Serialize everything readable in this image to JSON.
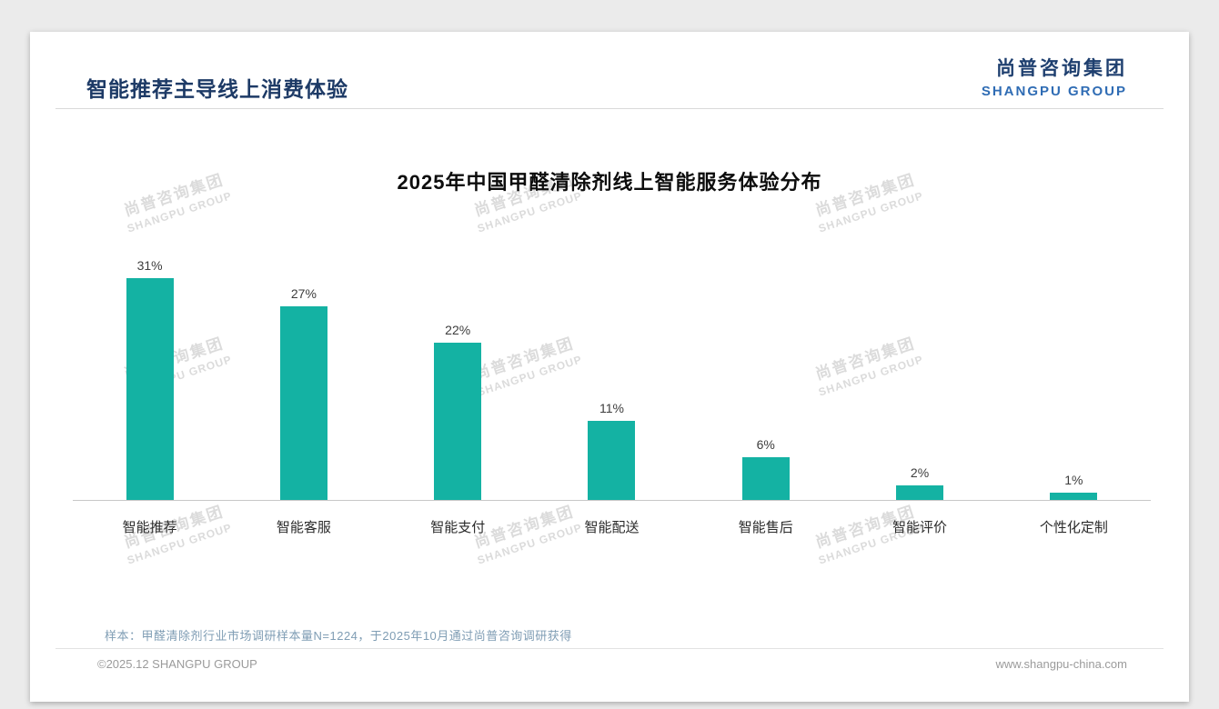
{
  "page": {
    "title": "智能推荐主导线上消费体验",
    "logo": {
      "cn": "尚普咨询集团",
      "en": "SHANGPU GROUP"
    },
    "note": "样本：甲醛清除剂行业市场调研样本量N=1224，于2025年10月通过尚普咨询调研获得",
    "footer": {
      "left": "©2025.12 SHANGPU GROUP",
      "right": "www.shangpu-china.com"
    }
  },
  "watermark": {
    "cn": "尚普咨询集团",
    "en": "SHANGPU GROUP"
  },
  "colors": {
    "bar_teal": "#14b2a3",
    "title_navy": "#1d3a66",
    "logo_blue": "#2f6cb4"
  },
  "chart_data": {
    "type": "bar",
    "title": "2025年中国甲醛清除剂线上智能服务体验分布",
    "categories": [
      "智能推荐",
      "智能客服",
      "智能支付",
      "智能配送",
      "智能售后",
      "智能评价",
      "个性化定制"
    ],
    "values": [
      31,
      27,
      22,
      11,
      6,
      2,
      1
    ],
    "value_labels": [
      "31%",
      "27%",
      "22%",
      "11%",
      "6%",
      "2%",
      "1%"
    ],
    "xlabel": "",
    "ylabel": "",
    "ylim": [
      0,
      35
    ],
    "grid": false,
    "legend": false,
    "bar_color": "#14b2a3"
  }
}
